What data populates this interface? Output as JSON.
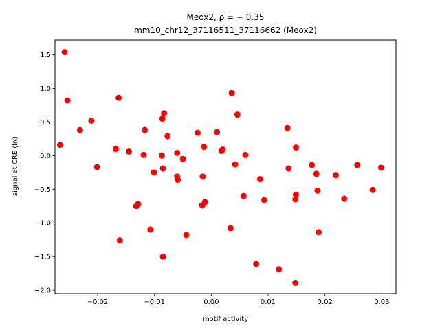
{
  "chart_data": {
    "type": "scatter",
    "title_line1": "Meox2, ρ = − 0.35",
    "title_line2": "mm10_chr12_37116511_37116662 (Meox2)",
    "xlabel": "motif activity",
    "ylabel": "signal at CRE (ln)",
    "xlim": [
      -0.0275,
      0.0325
    ],
    "ylim": [
      -2.05,
      1.72
    ],
    "x_ticks": [
      -0.02,
      -0.01,
      0.0,
      0.01,
      0.02,
      0.03
    ],
    "x_tick_labels": [
      "−0.02",
      "−0.01",
      "0.00",
      "0.01",
      "0.02",
      "0.03"
    ],
    "y_ticks": [
      -2.0,
      -1.5,
      -1.0,
      -0.5,
      0.0,
      0.5,
      1.0,
      1.5
    ],
    "y_tick_labels": [
      "−2.0",
      "−1.5",
      "−1.0",
      "−0.5",
      "0.0",
      "0.5",
      "1.0",
      "1.5"
    ],
    "marker_color": "#ff0000",
    "grid": false,
    "series": [
      {
        "points": [
          [
            -0.0266,
            0.16
          ],
          [
            -0.0258,
            1.54
          ],
          [
            -0.0253,
            0.82
          ],
          [
            -0.0231,
            0.38
          ],
          [
            -0.0211,
            0.52
          ],
          [
            -0.0201,
            -0.17
          ],
          [
            -0.0168,
            0.1
          ],
          [
            -0.0163,
            0.86
          ],
          [
            -0.0161,
            -1.26
          ],
          [
            -0.0145,
            0.06
          ],
          [
            -0.0132,
            -0.75
          ],
          [
            -0.0129,
            -0.72
          ],
          [
            -0.0119,
            0.01
          ],
          [
            -0.0117,
            0.38
          ],
          [
            -0.0107,
            -1.1
          ],
          [
            -0.0101,
            -0.25
          ],
          [
            -0.0087,
            0.0
          ],
          [
            -0.0086,
            0.55
          ],
          [
            -0.0085,
            -0.19
          ],
          [
            -0.0085,
            -1.5
          ],
          [
            -0.0083,
            0.63
          ],
          [
            -0.0077,
            0.29
          ],
          [
            -0.006,
            0.04
          ],
          [
            -0.006,
            -0.31
          ],
          [
            -0.0059,
            -0.36
          ],
          [
            -0.005,
            -0.05
          ],
          [
            -0.0044,
            -1.18
          ],
          [
            -0.0024,
            0.34
          ],
          [
            -0.0016,
            -0.74
          ],
          [
            -0.0015,
            -0.31
          ],
          [
            -0.0013,
            0.13
          ],
          [
            -0.0011,
            -0.69
          ],
          [
            0.001,
            0.35
          ],
          [
            0.0018,
            0.07
          ],
          [
            0.002,
            0.09
          ],
          [
            0.0034,
            -1.08
          ],
          [
            0.0036,
            0.93
          ],
          [
            0.0042,
            -0.13
          ],
          [
            0.0046,
            0.61
          ],
          [
            0.0057,
            -0.6
          ],
          [
            0.006,
            0.01
          ],
          [
            0.0079,
            -1.61
          ],
          [
            0.0086,
            -0.35
          ],
          [
            0.0093,
            -0.66
          ],
          [
            0.0119,
            -1.69
          ],
          [
            0.0134,
            0.41
          ],
          [
            0.0136,
            -0.19
          ],
          [
            0.0148,
            -0.65
          ],
          [
            0.0148,
            -1.89
          ],
          [
            0.0149,
            0.12
          ],
          [
            0.0149,
            -0.58
          ],
          [
            0.0177,
            -0.14
          ],
          [
            0.0185,
            -0.27
          ],
          [
            0.0187,
            -0.52
          ],
          [
            0.0189,
            -1.14
          ],
          [
            0.0219,
            -0.29
          ],
          [
            0.0234,
            -0.64
          ],
          [
            0.0257,
            -0.14
          ],
          [
            0.0284,
            -0.51
          ],
          [
            0.0299,
            -0.18
          ]
        ]
      }
    ]
  }
}
